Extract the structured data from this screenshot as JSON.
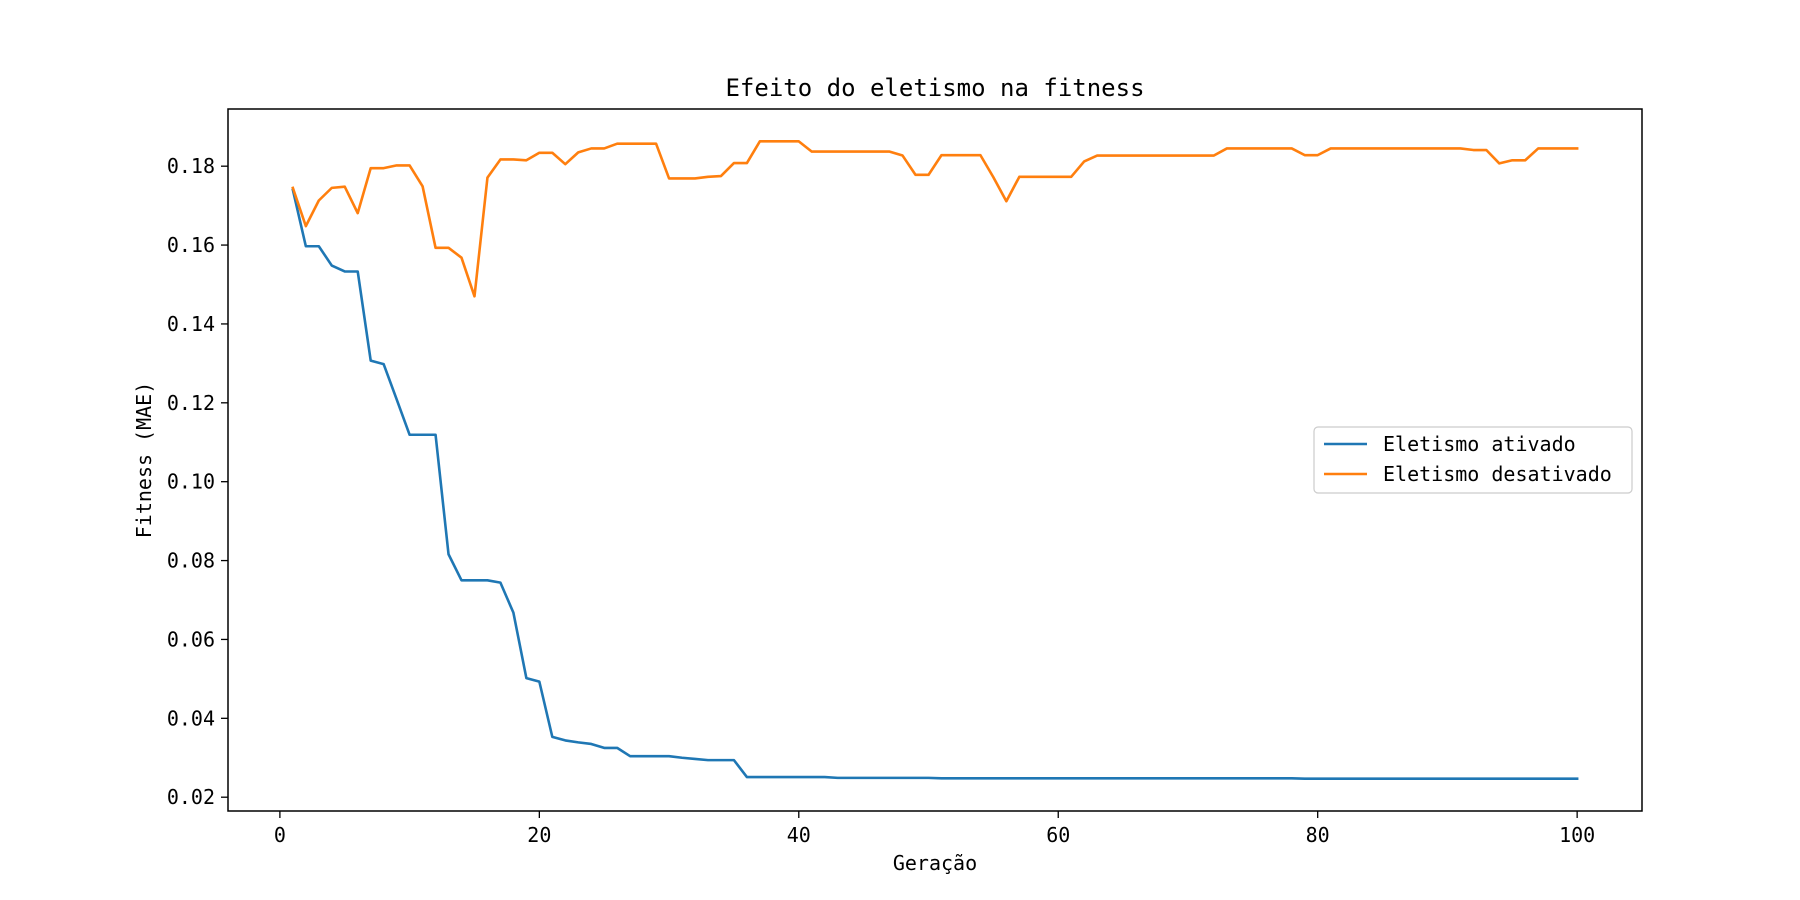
{
  "chart_data": {
    "type": "line",
    "title": "Efeito do eletismo na fitness",
    "xlabel": "Geração",
    "ylabel": "Fitness (MAE)",
    "xlim": [
      -4,
      105
    ],
    "ylim": [
      0.0165,
      0.1945
    ],
    "xticks": [
      0,
      20,
      40,
      60,
      80,
      100
    ],
    "yticks": [
      0.02,
      0.04,
      0.06,
      0.08,
      0.1,
      0.12,
      0.14,
      0.16,
      0.18
    ],
    "xtick_labels": [
      "0",
      "20",
      "40",
      "60",
      "80",
      "100"
    ],
    "ytick_labels": [
      "0.02",
      "0.04",
      "0.06",
      "0.08",
      "0.10",
      "0.12",
      "0.14",
      "0.16",
      "0.18"
    ],
    "grid": false,
    "legend_position": "center-right",
    "x": [
      1,
      2,
      3,
      4,
      5,
      6,
      7,
      8,
      9,
      10,
      11,
      12,
      13,
      14,
      15,
      16,
      17,
      18,
      19,
      20,
      21,
      22,
      23,
      24,
      25,
      26,
      27,
      28,
      29,
      30,
      31,
      32,
      33,
      34,
      35,
      36,
      37,
      38,
      39,
      40,
      41,
      42,
      43,
      44,
      45,
      46,
      47,
      48,
      49,
      50,
      51,
      52,
      53,
      54,
      55,
      56,
      57,
      58,
      59,
      60,
      61,
      62,
      63,
      64,
      65,
      66,
      67,
      68,
      69,
      70,
      71,
      72,
      73,
      74,
      75,
      76,
      77,
      78,
      79,
      80,
      81,
      82,
      83,
      84,
      85,
      86,
      87,
      88,
      89,
      90,
      91,
      92,
      93,
      94,
      95,
      96,
      97,
      98,
      99,
      100
    ],
    "series": [
      {
        "name": "Eletismo ativado",
        "color": "#1f77b4",
        "values": [
          0.174,
          0.1597,
          0.1597,
          0.1548,
          0.1533,
          0.1533,
          0.1307,
          0.1298,
          0.1209,
          0.1119,
          0.1119,
          0.1119,
          0.0816,
          0.075,
          0.075,
          0.075,
          0.0744,
          0.0668,
          0.0502,
          0.0493,
          0.0353,
          0.0344,
          0.0339,
          0.0335,
          0.0325,
          0.0325,
          0.0304,
          0.0304,
          0.0304,
          0.0304,
          0.03,
          0.0297,
          0.0294,
          0.0294,
          0.0294,
          0.0251,
          0.0251,
          0.0251,
          0.0251,
          0.0251,
          0.0251,
          0.0251,
          0.0249,
          0.0249,
          0.0249,
          0.0249,
          0.0249,
          0.0249,
          0.0249,
          0.0249,
          0.0248,
          0.0248,
          0.0248,
          0.0248,
          0.0248,
          0.0248,
          0.0248,
          0.0248,
          0.0248,
          0.0248,
          0.0248,
          0.0248,
          0.0248,
          0.0248,
          0.0248,
          0.0248,
          0.0248,
          0.0248,
          0.0248,
          0.0248,
          0.0248,
          0.0248,
          0.0248,
          0.0248,
          0.0248,
          0.0248,
          0.0248,
          0.0248,
          0.0247,
          0.0247,
          0.0247,
          0.0247,
          0.0247,
          0.0247,
          0.0247,
          0.0247,
          0.0247,
          0.0247,
          0.0247,
          0.0247,
          0.0247,
          0.0247,
          0.0247,
          0.0247,
          0.0247,
          0.0247,
          0.0247,
          0.0247,
          0.0247,
          0.0247
        ]
      },
      {
        "name": "Eletismo desativado",
        "color": "#ff7f0e",
        "values": [
          0.1745,
          0.1648,
          0.1713,
          0.1745,
          0.1748,
          0.1681,
          0.1795,
          0.1795,
          0.1802,
          0.1802,
          0.1749,
          0.1593,
          0.1593,
          0.1568,
          0.147,
          0.1771,
          0.1817,
          0.1817,
          0.1815,
          0.1834,
          0.1834,
          0.1805,
          0.1835,
          0.1845,
          0.1845,
          0.1857,
          0.1857,
          0.1857,
          0.1857,
          0.1769,
          0.1769,
          0.1769,
          0.1773,
          0.1775,
          0.1808,
          0.1808,
          0.1863,
          0.1863,
          0.1863,
          0.1863,
          0.1837,
          0.1837,
          0.1837,
          0.1837,
          0.1837,
          0.1837,
          0.1837,
          0.1827,
          0.1778,
          0.1778,
          0.1828,
          0.1828,
          0.1828,
          0.1828,
          0.1772,
          0.1711,
          0.1773,
          0.1773,
          0.1773,
          0.1773,
          0.1773,
          0.1812,
          0.1827,
          0.1827,
          0.1827,
          0.1827,
          0.1827,
          0.1827,
          0.1827,
          0.1827,
          0.1827,
          0.1827,
          0.1845,
          0.1845,
          0.1845,
          0.1845,
          0.1845,
          0.1845,
          0.1828,
          0.1828,
          0.1845,
          0.1845,
          0.1845,
          0.1845,
          0.1845,
          0.1845,
          0.1845,
          0.1845,
          0.1845,
          0.1845,
          0.1845,
          0.1841,
          0.1841,
          0.1807,
          0.1815,
          0.1815,
          0.1845,
          0.1845,
          0.1845,
          0.1845
        ]
      }
    ]
  }
}
